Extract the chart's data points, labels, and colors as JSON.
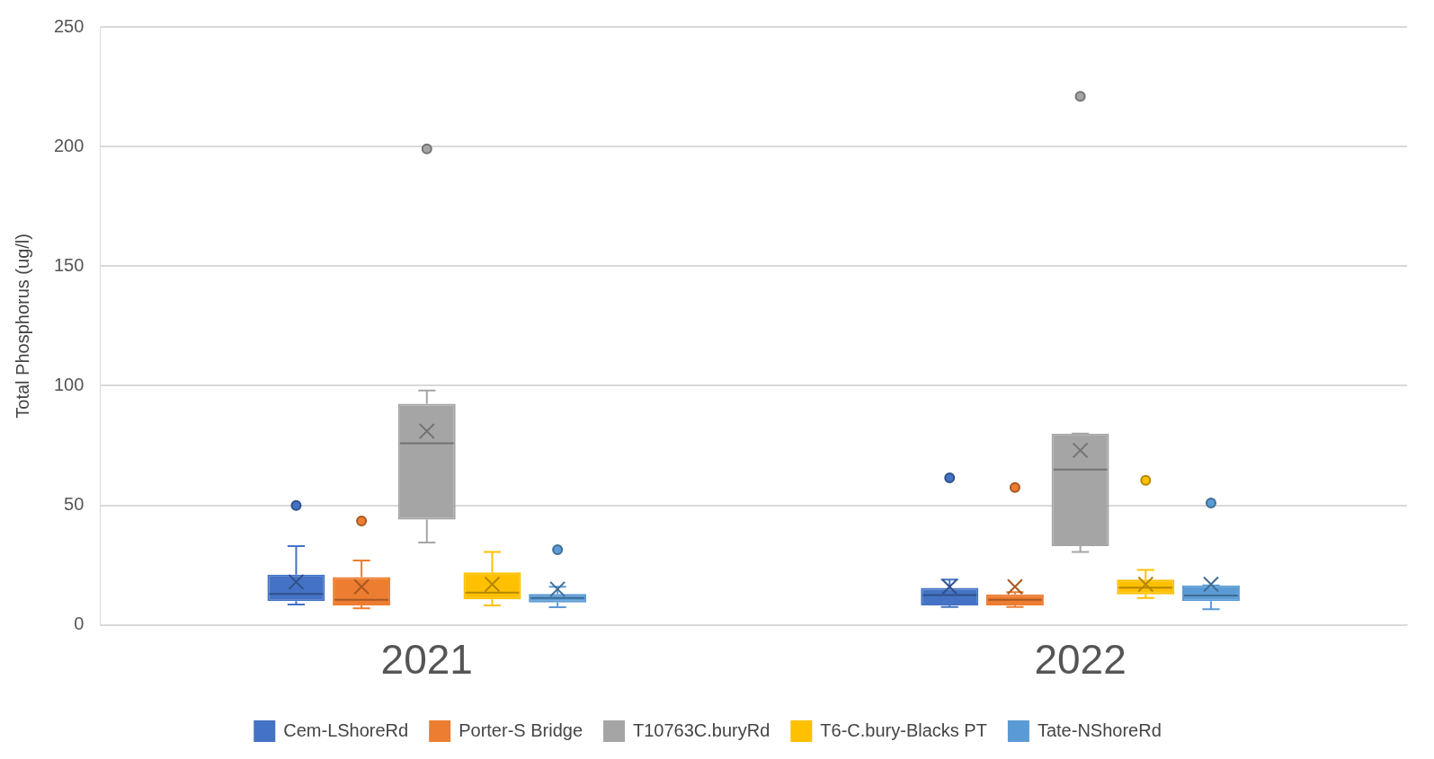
{
  "chart_data": {
    "type": "box",
    "ylabel": "Total Phosphorus (ug/l)",
    "categories": [
      "2021",
      "2022"
    ],
    "ylim": [
      0,
      250
    ],
    "yticks": [
      0,
      50,
      100,
      150,
      200,
      250
    ],
    "grid": "y",
    "legend": "bottom",
    "series": [
      {
        "name": "Cem-LShoreRd",
        "color": "#4472c4",
        "boxes": [
          {
            "low": 8.6,
            "q1": 10,
            "median": 13,
            "q3": 21,
            "high": 33,
            "mean": 18,
            "outliers": [
              50
            ]
          },
          {
            "low": 7.5,
            "q1": 8.2,
            "median": 12.5,
            "q3": 15.5,
            "high": 19,
            "mean": 16,
            "outliers": [
              61.5
            ]
          }
        ]
      },
      {
        "name": "Porter-S Bridge",
        "color": "#ed7d31",
        "boxes": [
          {
            "low": 7,
            "q1": 8.2,
            "median": 10.5,
            "q3": 20,
            "high": 27,
            "mean": 16,
            "outliers": [
              43.5
            ]
          },
          {
            "low": 7.5,
            "q1": 8.2,
            "median": 10.5,
            "q3": 12.8,
            "high": 13.7,
            "mean": 16,
            "outliers": [
              57.5
            ]
          }
        ]
      },
      {
        "name": "T10763C.buryRd",
        "color": "#a5a5a5",
        "boxes": [
          {
            "low": 34.5,
            "q1": 44,
            "median": 76,
            "q3": 92.5,
            "high": 98,
            "mean": 81,
            "outliers": [
              199
            ]
          },
          {
            "low": 30.5,
            "q1": 33,
            "median": 65,
            "q3": 80,
            "high": 80,
            "mean": 73,
            "outliers": [
              221
            ]
          }
        ]
      },
      {
        "name": "T6-C.bury-Blacks PT",
        "color": "#ffc000",
        "boxes": [
          {
            "low": 8.2,
            "q1": 10.7,
            "median": 13.5,
            "q3": 22,
            "high": 30.5,
            "mean": 17
          },
          {
            "low": 11.3,
            "q1": 12.8,
            "median": 15.6,
            "q3": 19,
            "high": 23,
            "mean": 17,
            "outliers": [
              60.5
            ]
          }
        ]
      },
      {
        "name": "Tate-NShoreRd",
        "color": "#5b9bd5",
        "boxes": [
          {
            "low": 7.4,
            "q1": 9.4,
            "median": 11.3,
            "q3": 13,
            "high": 16,
            "mean": 15,
            "outliers": [
              31.5
            ]
          },
          {
            "low": 6.6,
            "q1": 10,
            "median": 12.3,
            "q3": 16.5,
            "high": 16.5,
            "mean": 17,
            "outliers": [
              51
            ]
          }
        ]
      }
    ]
  }
}
